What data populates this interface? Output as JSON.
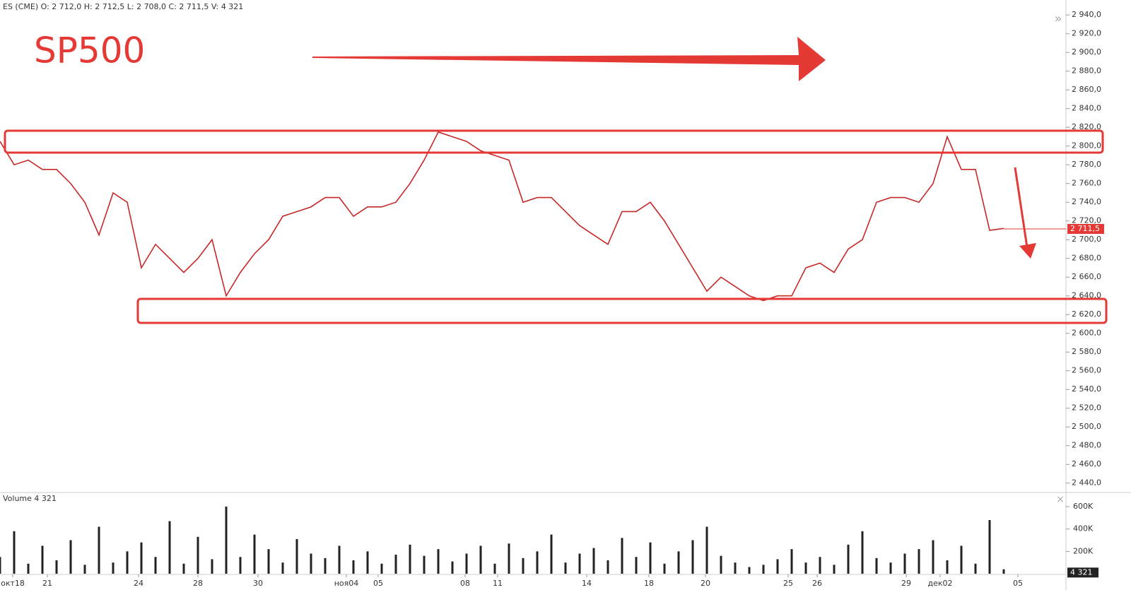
{
  "header": {
    "text": "ES (CME)  O: 2 712,0  H: 2 712,5  L: 2 708,0  C: 2 711,5  V: 4 321"
  },
  "annotation": "SP500",
  "chart_data": [
    {
      "type": "line",
      "color": "#c62828",
      "values": [
        2805,
        2780,
        2785,
        2775,
        2775,
        2760,
        2740,
        2705,
        2750,
        2740,
        2670,
        2695,
        2680,
        2665,
        2680,
        2700,
        2640,
        2665,
        2685,
        2700,
        2725,
        2730,
        2735,
        2745,
        2745,
        2725,
        2735,
        2735,
        2740,
        2760,
        2785,
        2815,
        2810,
        2805,
        2795,
        2790,
        2785,
        2740,
        2745,
        2745,
        2730,
        2715,
        2705,
        2695,
        2730,
        2730,
        2740,
        2720,
        2695,
        2670,
        2645,
        2660,
        2650,
        2640,
        2635,
        2640,
        2640,
        2670,
        2675,
        2665,
        2690,
        2700,
        2740,
        2745,
        2745,
        2740,
        2760,
        2810,
        2775,
        2775,
        2710,
        2712
      ],
      "xlim": [
        0,
        75.5
      ],
      "xticks": [
        {
          "value": 0.9,
          "label": "окт18"
        },
        {
          "value": 3.35,
          "label": "21"
        },
        {
          "value": 9.8,
          "label": "24"
        },
        {
          "value": 14.0,
          "label": "28"
        },
        {
          "value": 18.25,
          "label": "30"
        },
        {
          "value": 24.5,
          "label": "ноя04"
        },
        {
          "value": 26.75,
          "label": "05"
        },
        {
          "value": 32.9,
          "label": "08"
        },
        {
          "value": 35.2,
          "label": "11"
        },
        {
          "value": 41.5,
          "label": "14"
        },
        {
          "value": 45.9,
          "label": "18"
        },
        {
          "value": 49.9,
          "label": "20"
        },
        {
          "value": 55.75,
          "label": "25"
        },
        {
          "value": 57.8,
          "label": "26"
        },
        {
          "value": 64.1,
          "label": "29"
        },
        {
          "value": 66.5,
          "label": "дек02"
        },
        {
          "value": 72.0,
          "label": "05"
        }
      ],
      "ylim": [
        2430,
        2956
      ],
      "yticks": [
        {
          "value": 2440,
          "label": "2 440,0"
        },
        {
          "value": 2460,
          "label": "2 460,0"
        },
        {
          "value": 2480,
          "label": "2 480,0"
        },
        {
          "value": 2500,
          "label": "2 500,0"
        },
        {
          "value": 2520,
          "label": "2 520,0"
        },
        {
          "value": 2540,
          "label": "2 540,0"
        },
        {
          "value": 2560,
          "label": "2 560,0"
        },
        {
          "value": 2580,
          "label": "2 580,0"
        },
        {
          "value": 2600,
          "label": "2 600,0"
        },
        {
          "value": 2620,
          "label": "2 620,0"
        },
        {
          "value": 2640,
          "label": "2 640,0"
        },
        {
          "value": 2660,
          "label": "2 660,0"
        },
        {
          "value": 2680,
          "label": "2 680,0"
        },
        {
          "value": 2700,
          "label": "2 700,0"
        },
        {
          "value": 2720,
          "label": "2 720,0"
        },
        {
          "value": 2740,
          "label": "2 740,0"
        },
        {
          "value": 2760,
          "label": "2 760,0"
        },
        {
          "value": 2780,
          "label": "2 780,0"
        },
        {
          "value": 2800,
          "label": "2 800,0"
        },
        {
          "value": 2820,
          "label": "2 820,0"
        },
        {
          "value": 2840,
          "label": "2 840,0"
        },
        {
          "value": 2860,
          "label": "2 860,0"
        },
        {
          "value": 2880,
          "label": "2 880,0"
        },
        {
          "value": 2900,
          "label": "2 900,0"
        },
        {
          "value": 2920,
          "label": "2 920,0"
        },
        {
          "value": 2940,
          "label": "2 940,0"
        }
      ],
      "last_price": {
        "value": 2711.5,
        "label": "2 711,5"
      }
    },
    {
      "type": "bar",
      "title": "Volume 4 321",
      "color": "#222222",
      "values": [
        150000,
        380000,
        90000,
        250000,
        120000,
        300000,
        80000,
        420000,
        100000,
        200000,
        280000,
        150000,
        470000,
        90000,
        330000,
        130000,
        600000,
        150000,
        350000,
        220000,
        100000,
        310000,
        180000,
        140000,
        250000,
        120000,
        200000,
        90000,
        170000,
        260000,
        160000,
        220000,
        110000,
        180000,
        250000,
        90000,
        270000,
        140000,
        200000,
        350000,
        100000,
        180000,
        230000,
        120000,
        320000,
        150000,
        280000,
        90000,
        200000,
        300000,
        420000,
        160000,
        100000,
        60000,
        80000,
        130000,
        220000,
        100000,
        150000,
        80000,
        260000,
        380000,
        140000,
        100000,
        180000,
        220000,
        300000,
        120000,
        250000,
        90000,
        480000,
        40000
      ],
      "ylim": [
        0,
        720000
      ],
      "yticks": [
        {
          "value": 200000,
          "label": "200K"
        },
        {
          "value": 400000,
          "label": "400K"
        },
        {
          "value": 600000,
          "label": "600K"
        }
      ],
      "last_volume": {
        "value": 4321,
        "label": "4 321"
      }
    }
  ]
}
